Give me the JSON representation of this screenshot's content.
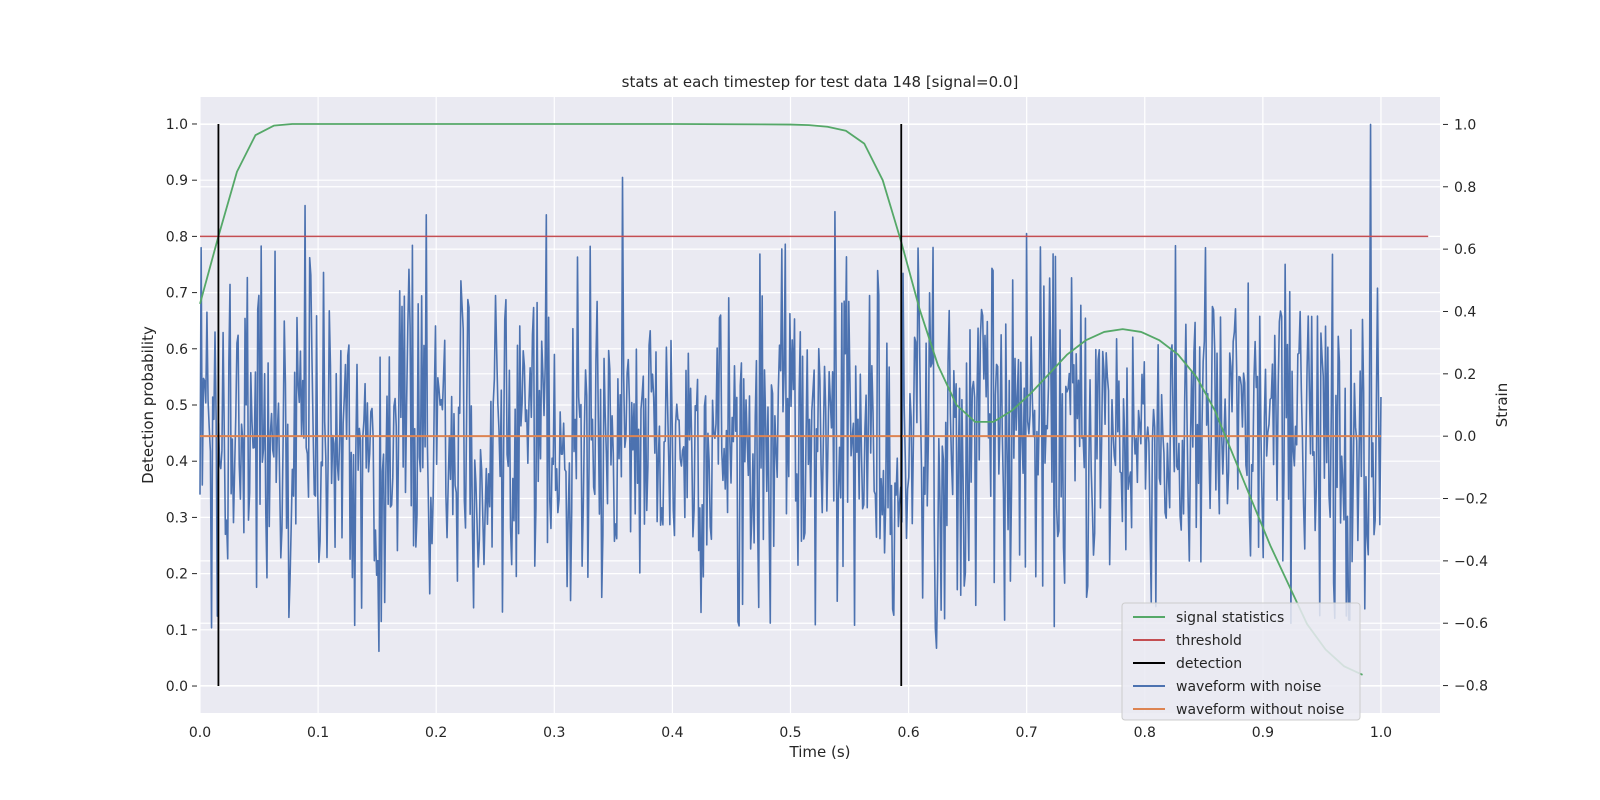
{
  "chart_data": {
    "type": "line",
    "title": "stats at each timestep for test data 148 [signal=0.0]",
    "xlabel": "Time (s)",
    "ylabel": "Detection probability",
    "ylabel_right": "Strain",
    "xlim": [
      0.0,
      1.05
    ],
    "ylim": [
      -0.048,
      1.048
    ],
    "ylim_right": [
      -0.888,
      1.088
    ],
    "x_ticks": [
      "0.0",
      "0.1",
      "0.2",
      "0.3",
      "0.4",
      "0.5",
      "0.6",
      "0.7",
      "0.8",
      "0.9",
      "1.0"
    ],
    "y_ticks": [
      "0.0",
      "0.1",
      "0.2",
      "0.3",
      "0.4",
      "0.5",
      "0.6",
      "0.7",
      "0.8",
      "0.9",
      "1.0"
    ],
    "y_ticks_right": [
      "−0.8",
      "−0.6",
      "−0.4",
      "−0.2",
      "0.0",
      "0.2",
      "0.4",
      "0.6",
      "0.8",
      "1.0"
    ],
    "grid": true,
    "legend_position": "lower-right",
    "series": [
      {
        "name": "signal statistics",
        "axis": "left",
        "color": "#55a868",
        "x": [
          0.0,
          0.0156,
          0.0313,
          0.0469,
          0.0625,
          0.0781,
          0.1,
          0.2,
          0.3,
          0.4,
          0.5,
          0.5156,
          0.5313,
          0.5469,
          0.5625,
          0.5781,
          0.5938,
          0.6094,
          0.625,
          0.6406,
          0.6563,
          0.6719,
          0.6875,
          0.7031,
          0.7188,
          0.7344,
          0.75,
          0.7656,
          0.7813,
          0.7969,
          0.8125,
          0.8281,
          0.8438,
          0.8594,
          0.875,
          0.8906,
          0.9063,
          0.9219,
          0.9375,
          0.9531,
          0.9688,
          0.9844
        ],
        "y": [
          0.68,
          0.8,
          0.915,
          0.98,
          0.997,
          1.0,
          1.0,
          1.0,
          1.0,
          1.0,
          0.999,
          0.998,
          0.995,
          0.988,
          0.965,
          0.9,
          0.79,
          0.67,
          0.57,
          0.5,
          0.47,
          0.47,
          0.49,
          0.52,
          0.555,
          0.59,
          0.615,
          0.63,
          0.635,
          0.63,
          0.615,
          0.59,
          0.55,
          0.49,
          0.41,
          0.33,
          0.25,
          0.18,
          0.11,
          0.065,
          0.035,
          0.02
        ]
      },
      {
        "name": "threshold",
        "axis": "left",
        "color": "#c44e52",
        "x": [
          0.0,
          1.04
        ],
        "y": [
          0.8,
          0.8
        ]
      },
      {
        "name": "detection",
        "axis": "left",
        "color": "#000000",
        "x": [
          0.0156,
          0.5938
        ],
        "y_range": [
          0.0,
          1.0
        ]
      },
      {
        "name": "waveform with noise",
        "axis": "right",
        "color": "#4c72b0",
        "x_range": [
          0.0,
          1.0
        ],
        "n_samples": 1024,
        "mean": 0.0,
        "std": 0.26,
        "min": -0.69,
        "max": 1.0,
        "peaks": [
          {
            "x": 0.0887,
            "y": 0.74
          },
          {
            "x": 0.1919,
            "y": 0.71
          },
          {
            "x": 0.2937,
            "y": 0.71
          },
          {
            "x": 0.3573,
            "y": 0.83
          },
          {
            "x": 0.538,
            "y": 0.72
          },
          {
            "x": 0.7,
            "y": 0.65
          },
          {
            "x": 0.9913,
            "y": 1.0
          },
          {
            "x": 0.1513,
            "y": -0.69
          },
          {
            "x": 0.6232,
            "y": -0.68
          }
        ]
      },
      {
        "name": "waveform without noise",
        "axis": "right",
        "color": "#dd8452",
        "x": [
          0.0,
          1.0
        ],
        "y": [
          0.0,
          0.0
        ]
      }
    ]
  }
}
